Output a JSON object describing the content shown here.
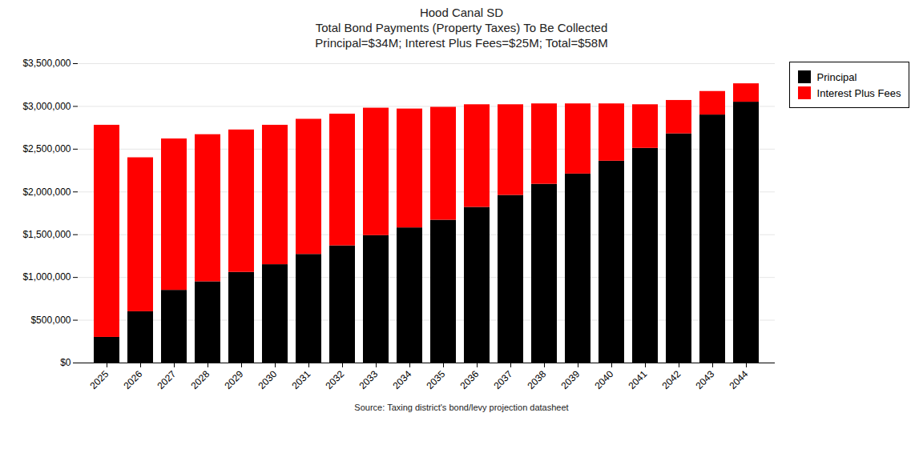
{
  "chart_data": {
    "type": "bar",
    "stacked": true,
    "title": "Hood Canal SD\nTotal Bond Payments (Property Taxes) To Be Collected\nPrincipal=$34M; Interest Plus Fees=$25M; Total=$58M",
    "annotations": [
      "Source: Taxing district's bond/levy projection datasheet"
    ],
    "categories": [
      "2025",
      "2026",
      "2027",
      "2028",
      "2029",
      "2030",
      "2031",
      "2032",
      "2033",
      "2034",
      "2035",
      "2036",
      "2037",
      "2038",
      "2039",
      "2040",
      "2041",
      "2042",
      "2043",
      "2044"
    ],
    "series": [
      {
        "name": "Principal",
        "color": "#000000",
        "values": [
          300000,
          600000,
          850000,
          950000,
          1060000,
          1150000,
          1270000,
          1370000,
          1490000,
          1580000,
          1670000,
          1820000,
          1960000,
          2090000,
          2210000,
          2360000,
          2510000,
          2680000,
          2900000,
          3050000
        ]
      },
      {
        "name": "Interest Plus Fees",
        "color": "#ff0000",
        "values": [
          2480000,
          1800000,
          1770000,
          1720000,
          1665000,
          1630000,
          1580000,
          1540000,
          1490000,
          1390000,
          1320000,
          1200000,
          1060000,
          940000,
          820000,
          670000,
          510000,
          390000,
          275000,
          215000
        ]
      }
    ],
    "ylim": [
      0,
      3500000
    ],
    "yticks": [
      {
        "value": 0,
        "label": "$0"
      },
      {
        "value": 500000,
        "label": "$500,000"
      },
      {
        "value": 1000000,
        "label": "$1,000,000"
      },
      {
        "value": 1500000,
        "label": "$1,500,000"
      },
      {
        "value": 2000000,
        "label": "$2,000,000"
      },
      {
        "value": 2500000,
        "label": "$2,500,000"
      },
      {
        "value": 3000000,
        "label": "$3,000,000"
      },
      {
        "value": 3500000,
        "label": "$3,500,000"
      }
    ],
    "grid": true,
    "legend": "right"
  }
}
